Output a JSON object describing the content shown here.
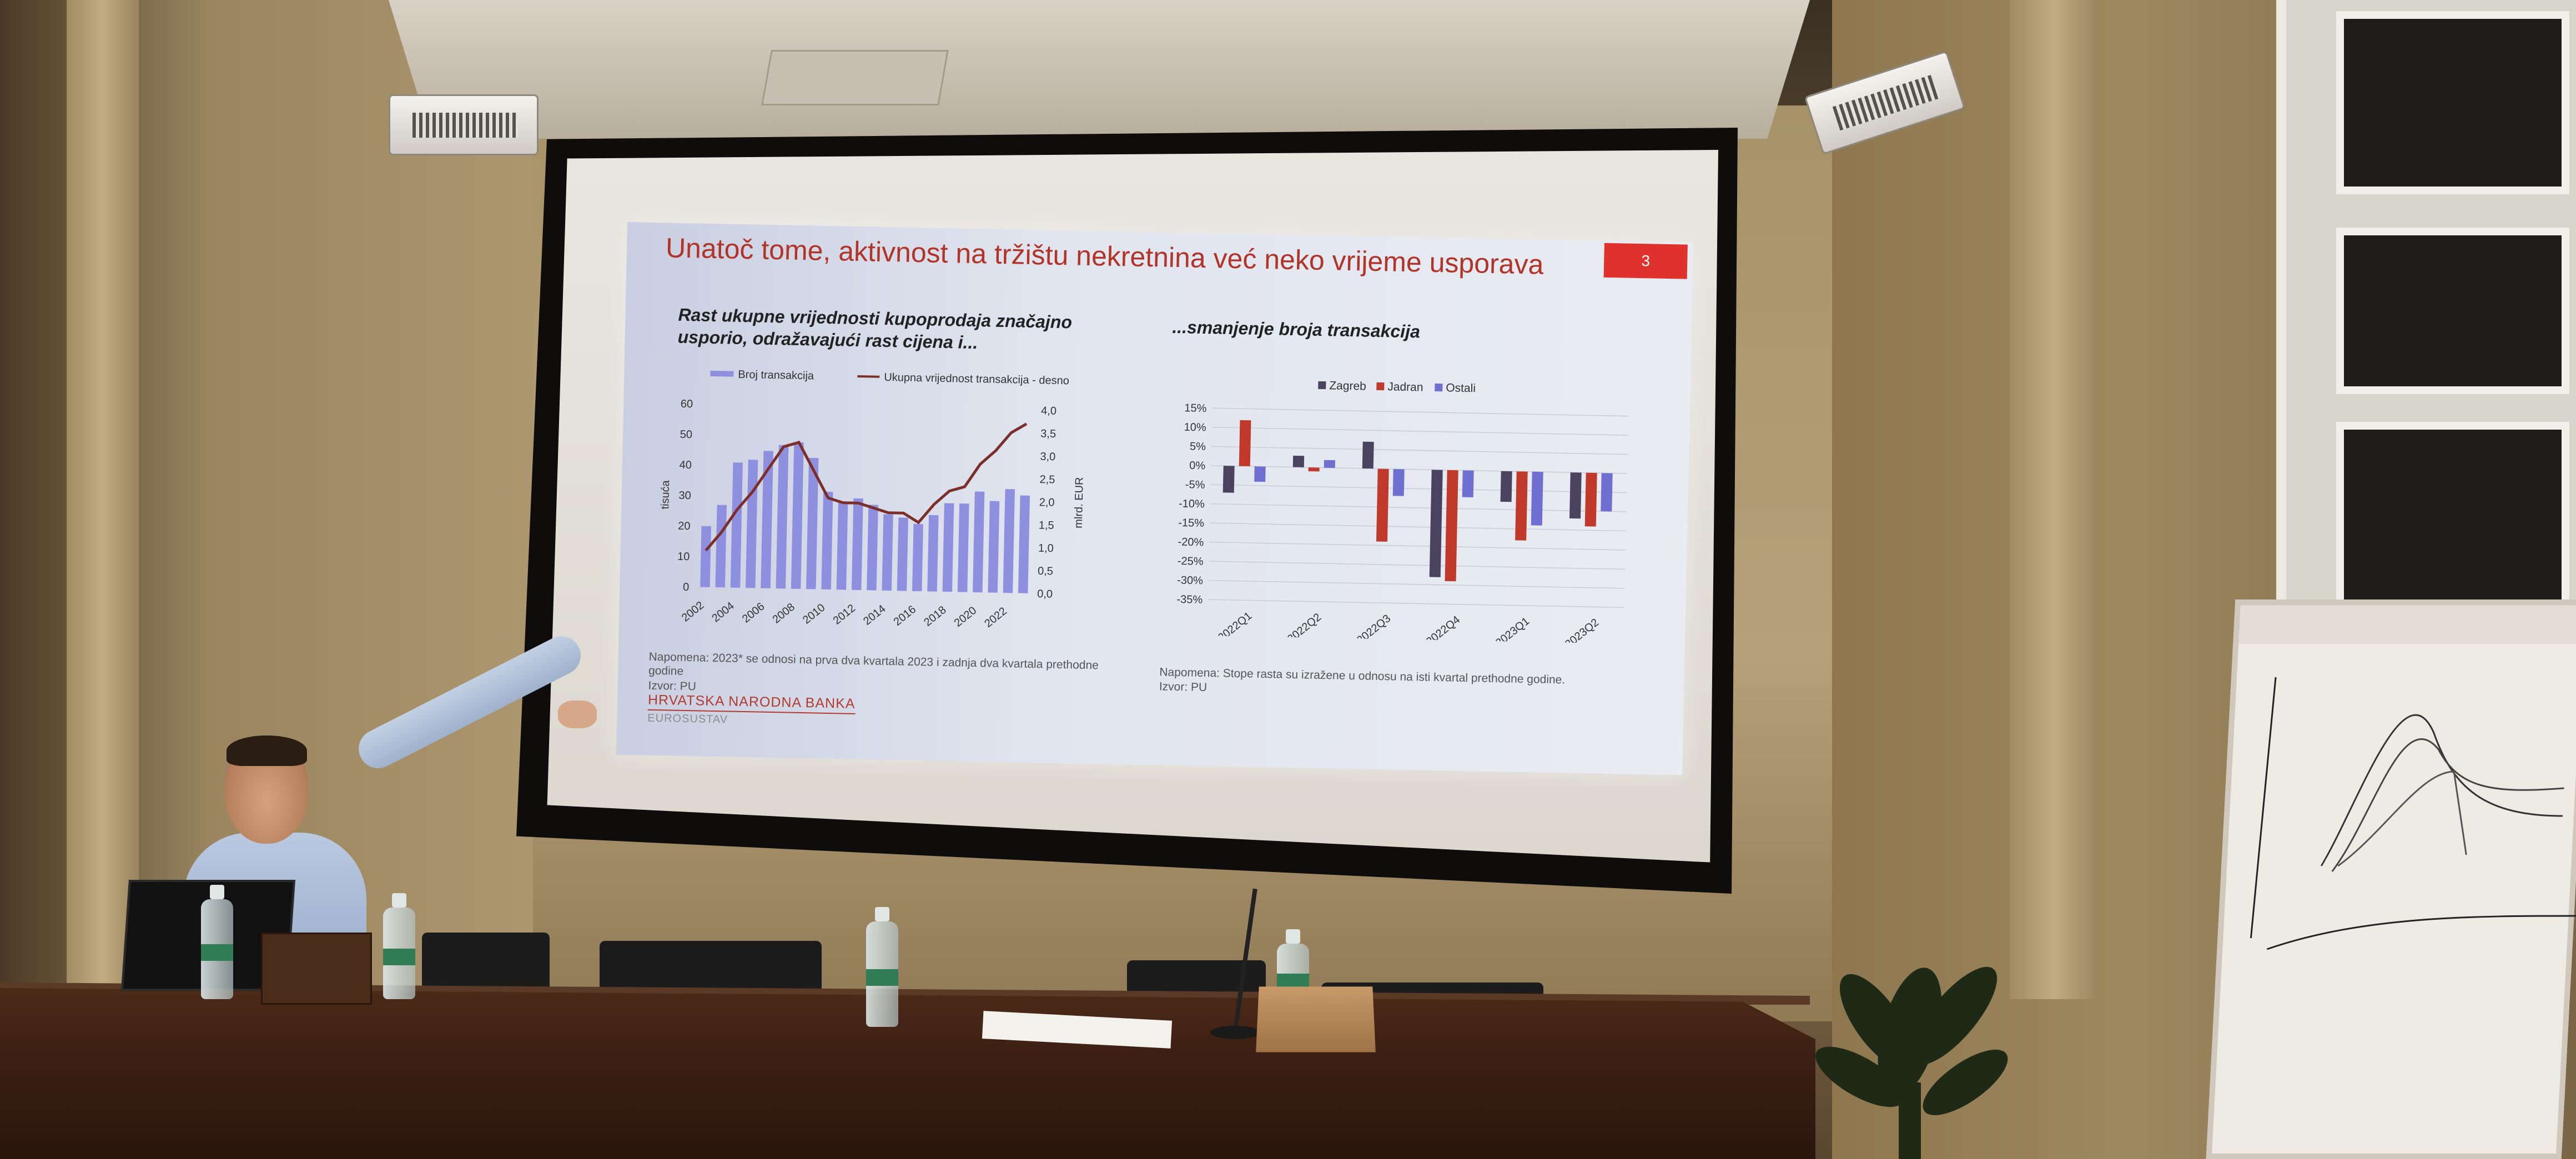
{
  "slide": {
    "title": "Unatoč tome, aktivnost na tržištu nekretnina već neko vrijeme usporava",
    "page_number": "3",
    "left_subtitle": "Rast ukupne vrijednosti kupoprodaja značajno usporio, odražavajući rast cijena i...",
    "right_subtitle": "...smanjenje broja transakcija",
    "left_note": "Napomena: 2023* se odnosi na prva dva kvartala 2023 i zadnja dva kvartala prethodne godine",
    "left_source": "Izvor: PU",
    "right_note": "Napomena: Stope rasta su izražene u odnosu na isti kvartal prethodne godine.",
    "right_source": "Izvor: PU",
    "footer_brand": "HRVATSKA NARODNA BANKA",
    "footer_sub": "EUROSUSTAV"
  },
  "colors": {
    "title_red": "#b23328",
    "bar_lavender": "#8f8fe0",
    "line_brown": "#7b2e2a",
    "zagreb": "#4a4360",
    "jadran": "#c0392b",
    "ostali": "#6e6fd0"
  },
  "chart_data": [
    {
      "type": "bar",
      "legend": [
        "Broj transakcija",
        "Ukupna vrijednost transakcija - desno"
      ],
      "ylabel": "tisuća",
      "y2label": "mlrd. EUR",
      "ylim": [
        0,
        60
      ],
      "y2lim": [
        0,
        4.0
      ],
      "yticks": [
        "0",
        "10",
        "20",
        "30",
        "40",
        "50",
        "60"
      ],
      "y2ticks": [
        "0,0",
        "0,5",
        "1,0",
        "1,5",
        "2,0",
        "2,5",
        "3,0",
        "3,5",
        "4,0"
      ],
      "x_tick_labels": [
        "2002",
        "2004",
        "2006",
        "2008",
        "2010",
        "2012",
        "2014",
        "2016",
        "2018",
        "2020",
        "2022"
      ],
      "x": [
        2002,
        2003,
        2004,
        2005,
        2006,
        2007,
        2008,
        2009,
        2010,
        2011,
        2012,
        2013,
        2014,
        2015,
        2016,
        2017,
        2018,
        2019,
        2020,
        2021,
        2022,
        2023
      ],
      "series": [
        {
          "name": "Broj transakcija",
          "type": "bar",
          "axis": "left",
          "values": [
            20,
            27,
            41,
            42,
            45,
            47,
            48,
            43,
            32,
            29,
            30,
            28,
            25,
            24,
            22,
            25,
            29,
            29,
            33,
            30,
            34,
            32
          ]
        },
        {
          "name": "Ukupna vrijednost transakcija - desno",
          "type": "line",
          "axis": "right",
          "values": [
            0.8,
            1.2,
            1.7,
            2.1,
            2.6,
            3.1,
            3.2,
            2.6,
            2.0,
            1.9,
            1.9,
            1.8,
            1.7,
            1.7,
            1.5,
            1.9,
            2.2,
            2.3,
            2.8,
            3.1,
            3.5,
            3.7
          ]
        }
      ]
    },
    {
      "type": "bar",
      "categories": [
        "2022Q1",
        "2022Q2",
        "2022Q3",
        "2022Q4",
        "2023Q1",
        "2023Q2"
      ],
      "ylim": [
        -35,
        15
      ],
      "yticks": [
        "15%",
        "10%",
        "5%",
        "0%",
        "-5%",
        "-10%",
        "-15%",
        "-20%",
        "-25%",
        "-30%",
        "-35%"
      ],
      "series": [
        {
          "name": "Zagreb",
          "values": [
            -7,
            3,
            7,
            -28,
            -8,
            -12
          ]
        },
        {
          "name": "Jadran",
          "values": [
            12,
            -1,
            -19,
            -29,
            -18,
            -14
          ]
        },
        {
          "name": "Ostali",
          "values": [
            -4,
            2,
            -7,
            -7,
            -14,
            -10
          ]
        }
      ]
    }
  ]
}
